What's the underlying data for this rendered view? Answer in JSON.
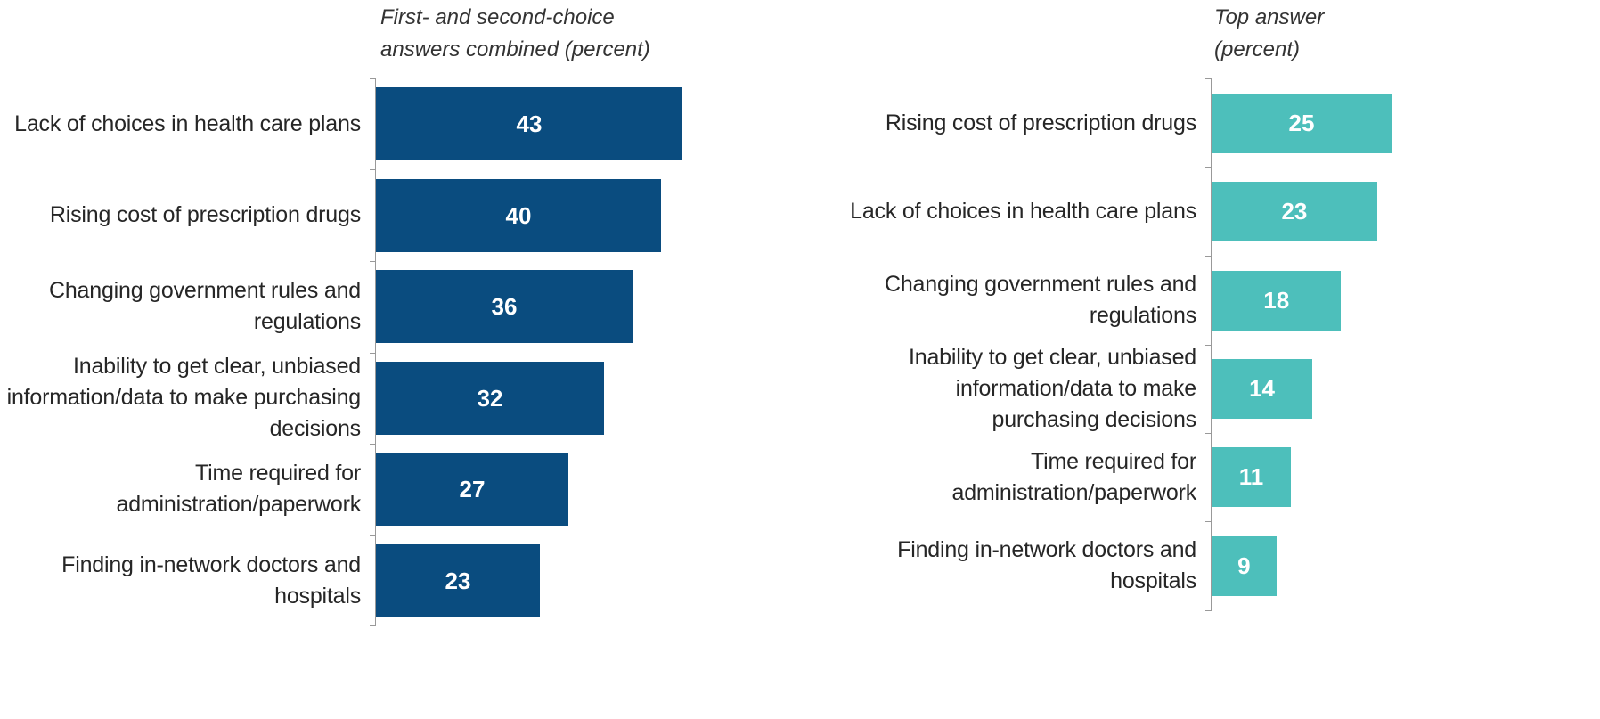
{
  "chart_data": [
    {
      "type": "bar",
      "orientation": "horizontal",
      "title": "First- and second-choice answers combined (percent)",
      "categories": [
        "Lack of choices in health care plans",
        "Rising cost of prescription drugs",
        "Changing government rules and regulations",
        "Inability to get clear, unbiased information/data to make purchasing decisions",
        "Time required for administration/paperwork",
        "Finding in-network doctors and hospitals"
      ],
      "values": [
        43,
        40,
        36,
        32,
        27,
        23
      ],
      "color": "#0a4c7f",
      "xlim": [
        0,
        50
      ]
    },
    {
      "type": "bar",
      "orientation": "horizontal",
      "title": "Top answer (percent)",
      "categories": [
        "Rising cost of prescription drugs",
        "Lack of choices in health care plans",
        "Changing government rules and regulations",
        "Inability to get clear, unbiased information/data to make purchasing decisions",
        "Time required for administration/paperwork",
        "Finding in-network doctors and hospitals"
      ],
      "values": [
        25,
        23,
        18,
        14,
        11,
        9
      ],
      "color": "#4dbfbb",
      "xlim": [
        0,
        50
      ]
    }
  ]
}
